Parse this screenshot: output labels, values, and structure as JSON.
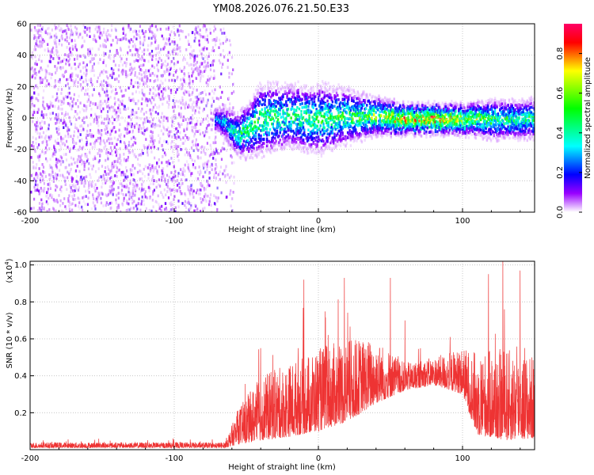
{
  "title": "YM08.2026.076.21.50.E33",
  "chart_data": [
    {
      "type": "heatmap",
      "name": "spectrogram",
      "xlabel": "Height of straight line (km)",
      "ylabel": "Frequency (Hz)",
      "xlim": [
        -200,
        150
      ],
      "ylim": [
        -60,
        60
      ],
      "xticks": [
        -200,
        -100,
        0,
        100
      ],
      "yticks": [
        -60,
        -40,
        -20,
        0,
        20,
        40,
        60
      ],
      "grid": true,
      "noise_region": {
        "x": [
          -200,
          -65
        ],
        "y": [
          -60,
          60
        ]
      },
      "signal_band": [
        {
          "x": -70,
          "center": 0,
          "halfwidth": 6,
          "peak": 0.35
        },
        {
          "x": -55,
          "center": -10,
          "halfwidth": 12,
          "peak": 0.55
        },
        {
          "x": -40,
          "center": 0,
          "halfwidth": 18,
          "peak": 0.6
        },
        {
          "x": -20,
          "center": 2,
          "halfwidth": 16,
          "peak": 0.55
        },
        {
          "x": 0,
          "center": 0,
          "halfwidth": 18,
          "peak": 0.6
        },
        {
          "x": 20,
          "center": 2,
          "halfwidth": 14,
          "peak": 0.6
        },
        {
          "x": 40,
          "center": 2,
          "halfwidth": 10,
          "peak": 0.7
        },
        {
          "x": 60,
          "center": 0,
          "halfwidth": 8,
          "peak": 0.95
        },
        {
          "x": 80,
          "center": 0,
          "halfwidth": 8,
          "peak": 0.95
        },
        {
          "x": 100,
          "center": 0,
          "halfwidth": 8,
          "peak": 0.8
        },
        {
          "x": 120,
          "center": 0,
          "halfwidth": 10,
          "peak": 0.6
        },
        {
          "x": 150,
          "center": 0,
          "halfwidth": 10,
          "peak": 0.55
        }
      ],
      "colorbar": {
        "label": "Normalized spectral amplitude",
        "range": [
          0.0,
          0.95
        ],
        "ticks": [
          0.0,
          0.2,
          0.4,
          0.6,
          0.8
        ],
        "tick_labels": [
          "0.0",
          "0.2",
          "0.4",
          "0.6",
          "0.8"
        ]
      }
    },
    {
      "type": "line",
      "name": "snr",
      "xlabel": "Height of straight line (km)",
      "ylabel": "SNR (10 * v/v)",
      "scale_label": "(x10",
      "scale_exponent": "4",
      "xlim": [
        -200,
        150
      ],
      "ylim": [
        0,
        1.02
      ],
      "xticks": [
        -200,
        -100,
        0,
        100
      ],
      "yticks": [
        0.2,
        0.4,
        0.6,
        0.8,
        1.0
      ],
      "ytick_labels": [
        "0.2",
        "0.4",
        "0.6",
        "0.8",
        "1.0"
      ],
      "color": "#ee3333",
      "envelope": [
        {
          "x": -200,
          "base": 0.01,
          "amp": 0.03
        },
        {
          "x": -65,
          "base": 0.01,
          "amp": 0.03
        },
        {
          "x": -55,
          "base": 0.03,
          "amp": 0.2
        },
        {
          "x": -40,
          "base": 0.05,
          "amp": 0.35
        },
        {
          "x": -20,
          "base": 0.07,
          "amp": 0.4
        },
        {
          "x": 0,
          "base": 0.1,
          "amp": 0.45
        },
        {
          "x": 20,
          "base": 0.15,
          "amp": 0.45
        },
        {
          "x": 40,
          "base": 0.25,
          "amp": 0.35
        },
        {
          "x": 60,
          "base": 0.32,
          "amp": 0.15
        },
        {
          "x": 80,
          "base": 0.35,
          "amp": 0.15
        },
        {
          "x": 100,
          "base": 0.3,
          "amp": 0.25
        },
        {
          "x": 110,
          "base": 0.08,
          "amp": 0.45
        },
        {
          "x": 130,
          "base": 0.05,
          "amp": 0.5
        },
        {
          "x": 150,
          "base": 0.06,
          "amp": 0.45
        }
      ],
      "peaks": [
        {
          "x": -40,
          "y": 0.55
        },
        {
          "x": -14,
          "y": 0.55
        },
        {
          "x": -10,
          "y": 0.92
        },
        {
          "x": 18,
          "y": 0.93
        },
        {
          "x": 50,
          "y": 0.93
        },
        {
          "x": 60,
          "y": 0.7
        },
        {
          "x": 118,
          "y": 0.95
        },
        {
          "x": 128,
          "y": 1.02
        },
        {
          "x": 140,
          "y": 0.97
        },
        {
          "x": 150,
          "y": 0.85
        }
      ]
    }
  ]
}
